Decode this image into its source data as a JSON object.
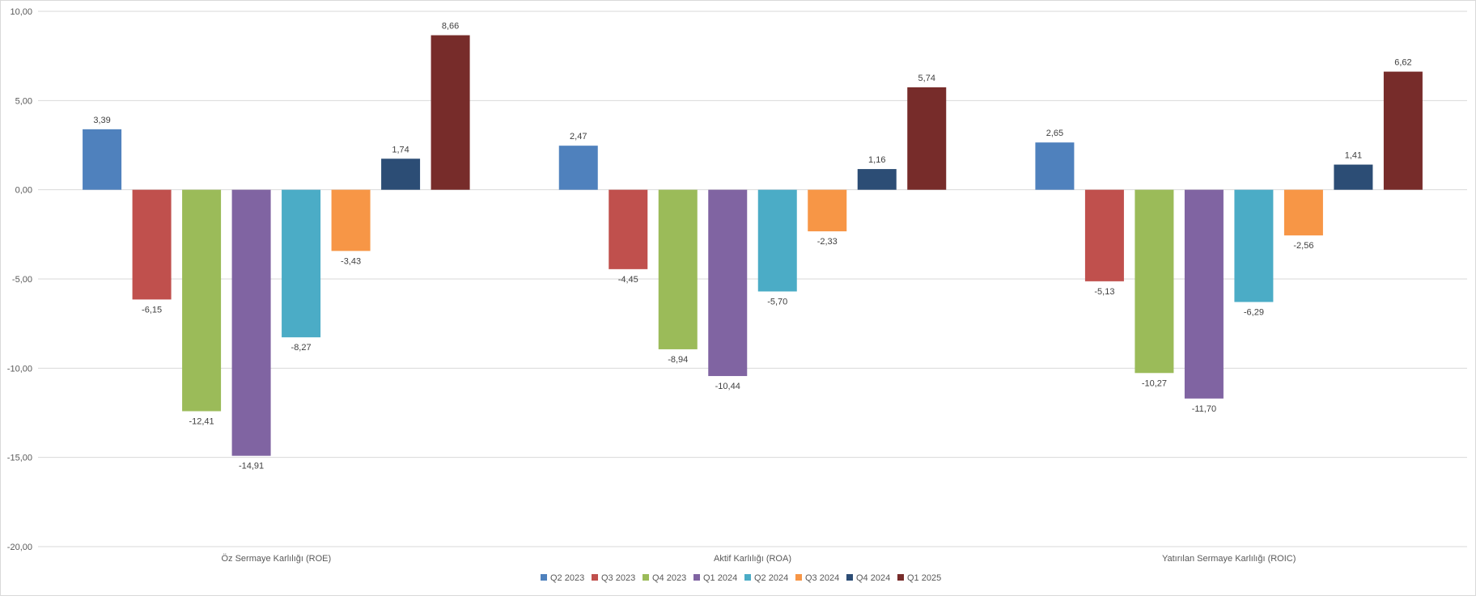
{
  "chart_data": {
    "type": "bar",
    "title": "",
    "xlabel": "",
    "ylabel": "",
    "ylim": [
      -20,
      10
    ],
    "yticks": [
      10,
      5,
      0,
      -5,
      -10,
      -15,
      -20
    ],
    "ytick_labels": [
      "10,00",
      "5,00",
      "0,00",
      "-5,00",
      "-10,00",
      "-15,00",
      "-20,00"
    ],
    "grid": "horizontal",
    "legend_position": "bottom",
    "categories": [
      "Öz Sermaye Karlılığı (ROE)",
      "Aktif Karlılığı (ROA)",
      "Yatırılan Sermaye Karlılığı (ROIC)"
    ],
    "series": [
      {
        "name": "Q2 2023",
        "color": "#4f81bd",
        "values": [
          3.39,
          2.47,
          2.65
        ],
        "labels": [
          "3,39",
          "2,47",
          "2,65"
        ]
      },
      {
        "name": "Q3 2023",
        "color": "#c0504d",
        "values": [
          -6.15,
          -4.45,
          -5.13
        ],
        "labels": [
          "-6,15",
          "-4,45",
          "-5,13"
        ]
      },
      {
        "name": "Q4 2023",
        "color": "#9bbb59",
        "values": [
          -12.41,
          -8.94,
          -10.27
        ],
        "labels": [
          "-12,41",
          "-8,94",
          "-10,27"
        ]
      },
      {
        "name": "Q1 2024",
        "color": "#8064a2",
        "values": [
          -14.91,
          -10.44,
          -11.7
        ],
        "labels": [
          "-14,91",
          "-10,44",
          "-11,70"
        ]
      },
      {
        "name": "Q2 2024",
        "color": "#4bacc6",
        "values": [
          -8.27,
          -5.7,
          -6.29
        ],
        "labels": [
          "-8,27",
          "-5,70",
          "-6,29"
        ]
      },
      {
        "name": "Q3 2024",
        "color": "#f79646",
        "values": [
          -3.43,
          -2.33,
          -2.56
        ],
        "labels": [
          "-3,43",
          "-2,33",
          "-2,56"
        ]
      },
      {
        "name": "Q4 2024",
        "color": "#2c4d75",
        "values": [
          1.74,
          1.16,
          1.41
        ],
        "labels": [
          "1,74",
          "1,16",
          "1,41"
        ]
      },
      {
        "name": "Q1 2025",
        "color": "#772c2a",
        "values": [
          8.66,
          5.74,
          6.62
        ],
        "labels": [
          "8,66",
          "5,74",
          "6,62"
        ]
      }
    ]
  }
}
